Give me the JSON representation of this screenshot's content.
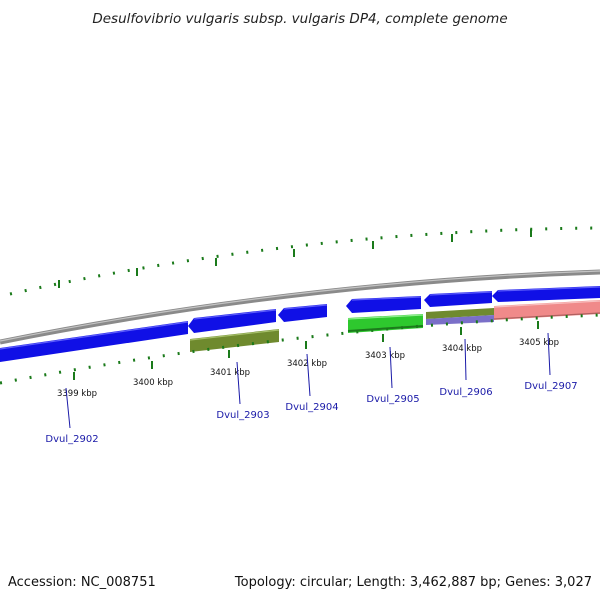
{
  "title": "Desulfovibrio vulgaris subsp. vulgaris DP4, complete genome",
  "footer": {
    "accession": "Accession: NC_008751",
    "summary": "Topology: circular; Length: 3,462,887 bp; Genes: 3,027"
  },
  "ticks": [
    "3399 kbp",
    "3400 kbp",
    "3401 kbp",
    "3402 kbp",
    "3403 kbp",
    "3404 kbp",
    "3405 kbp"
  ],
  "gene_labels": [
    "Dvul_2902",
    "Dvul_2903",
    "Dvul_2904",
    "Dvul_2905",
    "Dvul_2906",
    "Dvul_2907"
  ],
  "colors": {
    "background": "#ffffff",
    "backbone": "#8a8a8a",
    "cds": "#1010e6",
    "dotted_ring": "#1a7a1a",
    "olive_feature": "#6f8a2e",
    "green_feature": "#2ec82e",
    "purple_feature": "#7a6fc8",
    "pink_feature": "#f08a8a",
    "gene_label": "#1a1aa8"
  }
}
